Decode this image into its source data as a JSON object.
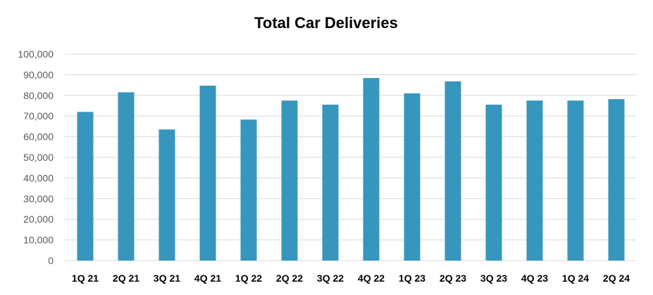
{
  "chart_data": {
    "type": "bar",
    "title": "Total Car Deliveries",
    "xlabel": "",
    "ylabel": "",
    "categories": [
      "1Q 21",
      "2Q 21",
      "3Q 21",
      "4Q 21",
      "1Q 22",
      "2Q 22",
      "3Q 22",
      "4Q 22",
      "1Q 23",
      "2Q 23",
      "3Q 23",
      "4Q 23",
      "1Q 24",
      "2Q 24"
    ],
    "values": [
      72000,
      81500,
      63500,
      84700,
      68300,
      77500,
      75500,
      88400,
      81000,
      86800,
      75500,
      77500,
      77500,
      78200
    ],
    "ylim": [
      0,
      100000
    ],
    "yticks": [
      "0",
      "10,000",
      "20,000",
      "30,000",
      "40,000",
      "50,000",
      "60,000",
      "70,000",
      "80,000",
      "90,000",
      "100,000"
    ],
    "grid": true,
    "legend": "none",
    "bar_color": "#3796BE",
    "grid_color": "#D9D9D9"
  }
}
